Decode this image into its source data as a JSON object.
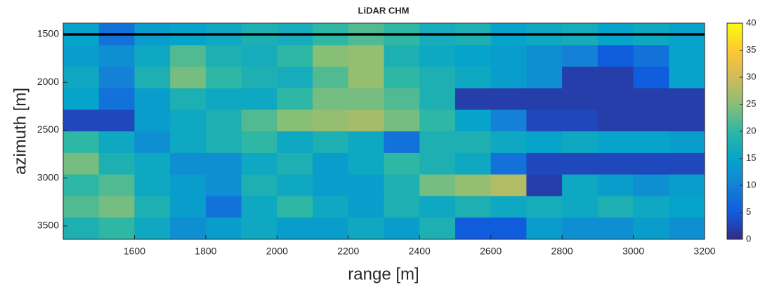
{
  "chart_data": {
    "type": "heatmap",
    "title": "LiDAR CHM",
    "xlabel": "range [m]",
    "ylabel": "azimuth [m]",
    "xlim": [
      1400,
      3200
    ],
    "ylim": [
      1383,
      3639
    ],
    "y_reversed": true,
    "xticks": [
      1600,
      1800,
      2000,
      2200,
      2400,
      2600,
      2800,
      3000,
      3200
    ],
    "yticks": [
      1500,
      2000,
      2500,
      3000,
      3500
    ],
    "clim": [
      0,
      40
    ],
    "cticks": [
      0,
      5,
      10,
      15,
      20,
      25,
      30,
      35,
      40
    ],
    "colormap": [
      "#352a87",
      "#0f5cdd",
      "#1481d6",
      "#06a4ca",
      "#2eb7a4",
      "#87bf77",
      "#d1bb59",
      "#fec832",
      "#f9fb0e"
    ],
    "hline": 1500,
    "hline_color": "#000000",
    "x": [
      1450,
      1550,
      1650,
      1750,
      1850,
      1950,
      2050,
      2150,
      2250,
      2350,
      2450,
      2550,
      2650,
      2750,
      2850,
      2950,
      3050,
      3150
    ],
    "y": [
      1500,
      1725,
      1950,
      2175,
      2400,
      2625,
      2850,
      3075,
      3300,
      3525
    ],
    "z": [
      [
        15,
        8,
        14,
        15,
        16,
        18,
        17,
        20,
        22,
        20,
        17,
        18,
        15,
        16,
        17,
        15,
        16,
        15
      ],
      [
        14,
        12,
        16,
        22,
        18,
        17,
        20,
        25,
        26,
        18,
        16,
        15,
        14,
        12,
        10,
        5,
        8,
        15
      ],
      [
        16,
        10,
        18,
        24,
        20,
        18,
        17,
        22,
        26,
        20,
        18,
        16,
        14,
        12,
        2,
        2,
        5,
        15
      ],
      [
        15,
        8,
        14,
        18,
        16,
        16,
        20,
        24,
        24,
        22,
        18,
        2,
        2,
        2,
        2,
        2,
        2,
        2
      ],
      [
        3,
        3,
        14,
        16,
        18,
        22,
        25,
        26,
        27,
        24,
        20,
        15,
        10,
        3,
        3,
        2,
        2,
        2
      ],
      [
        20,
        16,
        12,
        16,
        18,
        20,
        16,
        18,
        16,
        8,
        18,
        18,
        16,
        15,
        16,
        15,
        15,
        14
      ],
      [
        24,
        18,
        16,
        12,
        12,
        16,
        18,
        14,
        16,
        20,
        18,
        16,
        8,
        3,
        3,
        3,
        3,
        3
      ],
      [
        20,
        22,
        16,
        14,
        12,
        18,
        16,
        14,
        14,
        18,
        24,
        26,
        28,
        2,
        16,
        14,
        12,
        14
      ],
      [
        22,
        24,
        18,
        14,
        8,
        16,
        20,
        16,
        14,
        18,
        16,
        18,
        16,
        17,
        16,
        18,
        16,
        15
      ],
      [
        18,
        20,
        16,
        12,
        14,
        16,
        14,
        14,
        16,
        14,
        18,
        5,
        5,
        14,
        12,
        12,
        14,
        12
      ]
    ]
  }
}
